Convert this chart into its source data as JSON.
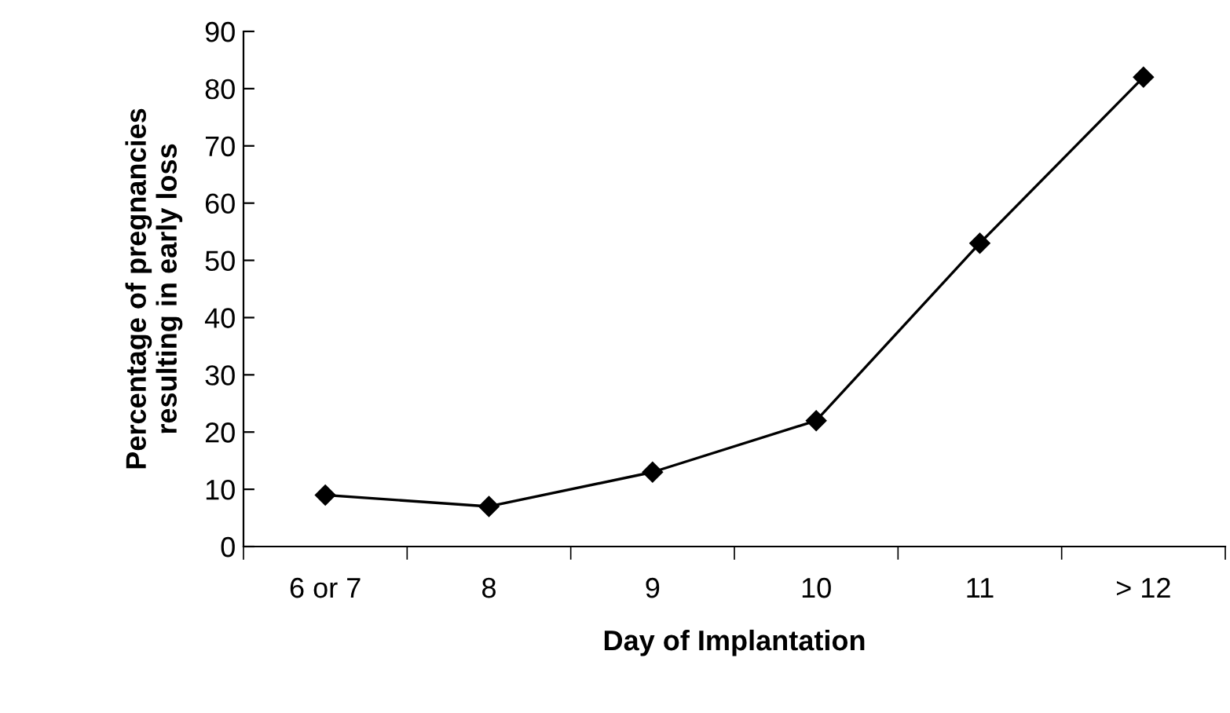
{
  "chart_data": {
    "type": "line",
    "xlabel": "Day of Implantation",
    "ylabel": "Percentage of pregnancies\nresulting in early loss",
    "categories": [
      "6 or 7",
      "8",
      "9",
      "10",
      "11",
      "> 12"
    ],
    "series": [
      {
        "color": "#000000",
        "values": [
          9,
          7,
          13,
          22,
          53,
          82
        ]
      }
    ],
    "ylim": [
      0,
      90
    ],
    "yticks": [
      0,
      10,
      20,
      30,
      40,
      50,
      60,
      70,
      80,
      90
    ],
    "marker": "diamond",
    "line_style": "solid",
    "grid": false,
    "legend": false
  }
}
